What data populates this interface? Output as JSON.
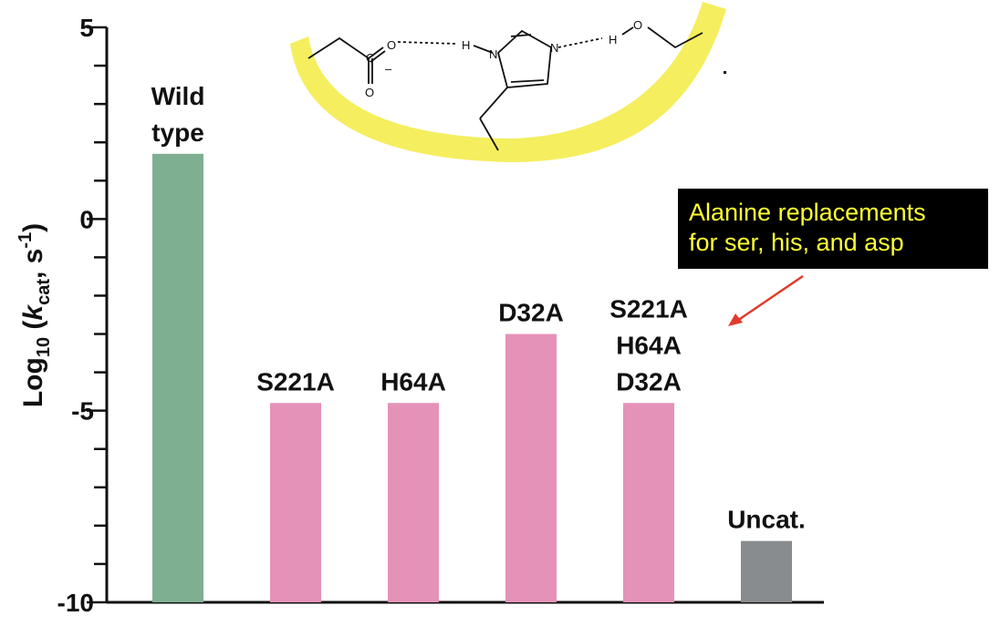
{
  "chart_data": {
    "type": "bar",
    "ylabel": {
      "prefix": "Log",
      "sub10": "10",
      "open": " (",
      "k": "k",
      "cat": "cat",
      "sep": ", s",
      "exp": "-1",
      "close": ")"
    },
    "ylim": [
      -10,
      5
    ],
    "yticks": [
      {
        "value": 5,
        "label": "5"
      },
      {
        "value": 0,
        "label": "0"
      },
      {
        "value": -5,
        "label": "-5"
      },
      {
        "value": -10,
        "label": "-10"
      }
    ],
    "baseline": -10,
    "bars": [
      {
        "label_lines": [
          "Wild",
          "type"
        ],
        "value": 1.7,
        "color": "#7faf91"
      },
      {
        "label_lines": [
          "S221A"
        ],
        "value": -4.8,
        "color": "#e592b8"
      },
      {
        "label_lines": [
          "H64A"
        ],
        "value": -4.8,
        "color": "#e592b8"
      },
      {
        "label_lines": [
          "D32A"
        ],
        "value": -3.0,
        "color": "#e592b8"
      },
      {
        "label_lines": [
          "S221A",
          "H64A",
          "D32A"
        ],
        "value": -4.8,
        "color": "#e592b8"
      },
      {
        "label_lines": [
          "Uncat."
        ],
        "value": -8.4,
        "color": "#898c8e"
      }
    ],
    "annotation": {
      "lines": [
        "Alanine replacements",
        "for ser, his, and asp"
      ],
      "box_color": "#000000",
      "text_color": "#ffff33",
      "arrow_color": "#e23a2a"
    },
    "inset": {
      "description_labels": [
        "C",
        "O",
        "O",
        "–",
        "H",
        "N",
        "N",
        "H",
        "O"
      ],
      "highlight_color": "#f6ee55"
    }
  }
}
